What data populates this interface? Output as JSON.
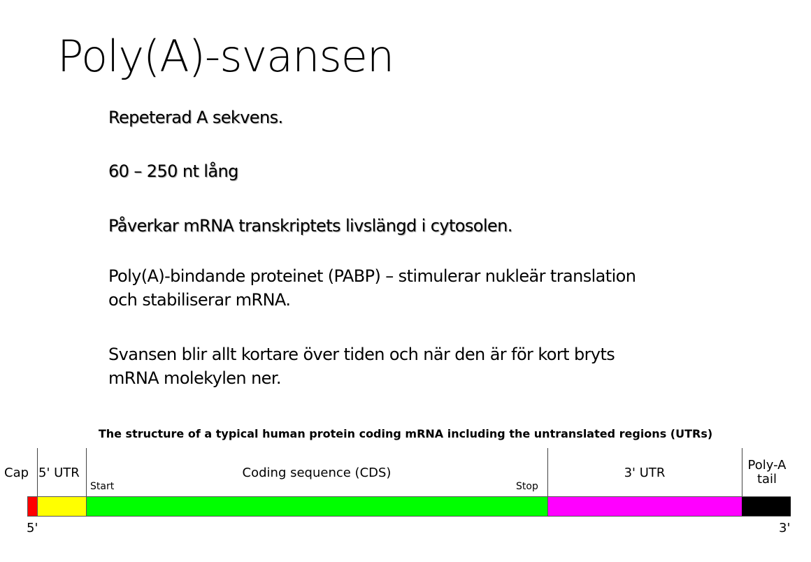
{
  "slide": {
    "title": "Poly(A)-svansen",
    "points": [
      {
        "line1": "Repeterad A sekvens."
      },
      {
        "line1": "60 – 250 nt lång"
      },
      {
        "line1": "Påverkar mRNA transkriptets livslängd i cytosolen."
      },
      {
        "line1": "Poly(A)-bindande proteinet (PABP) – stimulerar nukleär translation",
        "line2": "och stabiliserar mRNA."
      },
      {
        "line1": "Svansen blir allt kortare över tiden och när den är för kort bryts",
        "line2": "mRNA molekylen ner."
      }
    ]
  },
  "diagram": {
    "title": "The structure of a typical human protein coding mRNA including the untranslated regions (UTRs)",
    "regions": [
      {
        "label": "Cap",
        "color": "#ff0000"
      },
      {
        "label": "5' UTR",
        "color": "#ffff00"
      },
      {
        "label": "Coding sequence (CDS)",
        "color": "#00ff00"
      },
      {
        "label": "3' UTR",
        "color": "#ff00ff"
      },
      {
        "label": "Poly-A tail",
        "label1": "Poly-A",
        "label2": "tail",
        "color": "#000000"
      }
    ],
    "start_label": "Start",
    "stop_label": "Stop",
    "five_prime": "5'",
    "three_prime": "3'"
  }
}
